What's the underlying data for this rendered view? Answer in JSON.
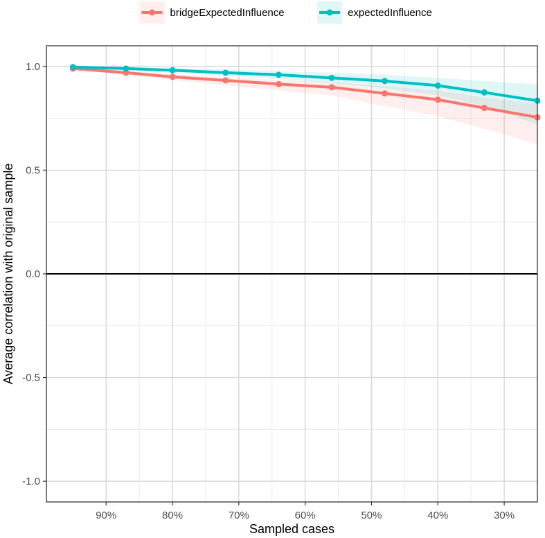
{
  "chart_data": {
    "type": "line",
    "xlabel": "Sampled cases",
    "ylabel": "Average correlation with original sample",
    "x_tick_labels": [
      "90%",
      "80%",
      "70%",
      "60%",
      "50%",
      "40%",
      "30%"
    ],
    "x_tick_values": [
      0.9,
      0.8,
      0.7,
      0.6,
      0.5,
      0.4,
      0.3
    ],
    "y_tick_labels": [
      "1.0",
      "0.5",
      "0.0",
      "-0.5",
      "-1.0"
    ],
    "y_tick_values": [
      1.0,
      0.5,
      0.0,
      -0.5,
      -1.0
    ],
    "xlim": [
      0.25,
      0.99
    ],
    "x_reversed": true,
    "ylim": [
      -1.1,
      1.1
    ],
    "reference_line_y": 0,
    "grid": true,
    "legend_position": "top",
    "x": [
      0.95,
      0.87,
      0.8,
      0.72,
      0.64,
      0.56,
      0.48,
      0.4,
      0.33,
      0.25
    ],
    "series": [
      {
        "name": "bridgeExpectedInfluence",
        "color": "#F8766D",
        "values": [
          0.99,
          0.97,
          0.95,
          0.933,
          0.915,
          0.9,
          0.87,
          0.84,
          0.8,
          0.755
        ],
        "lower": [
          0.985,
          0.96,
          0.935,
          0.91,
          0.885,
          0.86,
          0.81,
          0.76,
          0.7,
          0.625
        ],
        "upper": [
          0.995,
          0.98,
          0.963,
          0.95,
          0.935,
          0.925,
          0.905,
          0.885,
          0.85,
          0.82
        ]
      },
      {
        "name": "expectedInfluence",
        "color": "#00BFC4",
        "values": [
          0.997,
          0.99,
          0.982,
          0.97,
          0.96,
          0.945,
          0.93,
          0.908,
          0.875,
          0.835
        ],
        "lower": [
          0.99,
          0.98,
          0.97,
          0.955,
          0.94,
          0.92,
          0.895,
          0.86,
          0.81,
          0.72
        ],
        "upper": [
          1.0,
          0.995,
          0.99,
          0.985,
          0.978,
          0.97,
          0.96,
          0.945,
          0.93,
          0.915
        ]
      }
    ]
  }
}
